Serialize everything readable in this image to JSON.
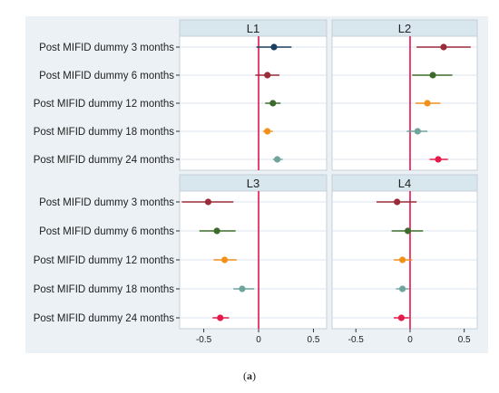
{
  "caption": {
    "prefix": "(",
    "label": "a",
    "suffix": ")"
  },
  "chart_data": {
    "type": "scatter",
    "layout": "2x2 facet forest plot with confidence intervals",
    "row_labels": [
      "Post MIFID dummy 3 months",
      "Post MIFID dummy 6 months",
      "Post MIFID dummy 12 months",
      "Post MIFID dummy 18 months",
      "Post MIFID dummy 24 months"
    ],
    "x_ticks": [
      "-0.5",
      "0",
      "0.5"
    ],
    "x_tick_values": [
      -0.5,
      0,
      0.5
    ],
    "xlim": [
      -0.72,
      0.62
    ],
    "reference_line": {
      "x": 0,
      "color": "#e8114f"
    },
    "grid": "horizontal",
    "marker_colors": [
      "#1a3f5f",
      "#9a2b39",
      "#3d6b2b",
      "#f3901c",
      "#6fa39c",
      "#e41b4a"
    ],
    "panels": [
      {
        "title": "L1",
        "points": [
          {
            "est": 0.14,
            "lo": -0.02,
            "hi": 0.3,
            "color": "#1a3f5f"
          },
          {
            "est": 0.08,
            "lo": -0.03,
            "hi": 0.19,
            "color": "#9a2b39"
          },
          {
            "est": 0.13,
            "lo": 0.06,
            "hi": 0.2,
            "color": "#3d6b2b"
          },
          {
            "est": 0.08,
            "lo": 0.04,
            "hi": 0.13,
            "color": "#f3901c"
          },
          {
            "est": 0.17,
            "lo": 0.13,
            "hi": 0.22,
            "color": "#6fa39c"
          }
        ]
      },
      {
        "title": "L2",
        "points": [
          {
            "est": 0.31,
            "lo": 0.06,
            "hi": 0.56,
            "color": "#9a2b39"
          },
          {
            "est": 0.21,
            "lo": 0.02,
            "hi": 0.39,
            "color": "#3d6b2b"
          },
          {
            "est": 0.16,
            "lo": 0.05,
            "hi": 0.28,
            "color": "#f3901c"
          },
          {
            "est": 0.07,
            "lo": -0.03,
            "hi": 0.16,
            "color": "#6fa39c"
          },
          {
            "est": 0.26,
            "lo": 0.18,
            "hi": 0.35,
            "color": "#e41b4a"
          }
        ]
      },
      {
        "title": "L3",
        "points": [
          {
            "est": -0.46,
            "lo": -0.7,
            "hi": -0.23,
            "color": "#9a2b39"
          },
          {
            "est": -0.38,
            "lo": -0.54,
            "hi": -0.21,
            "color": "#3d6b2b"
          },
          {
            "est": -0.31,
            "lo": -0.41,
            "hi": -0.2,
            "color": "#f3901c"
          },
          {
            "est": -0.15,
            "lo": -0.23,
            "hi": -0.04,
            "color": "#6fa39c"
          },
          {
            "est": -0.35,
            "lo": -0.42,
            "hi": -0.27,
            "color": "#e41b4a"
          }
        ]
      },
      {
        "title": "L4",
        "points": [
          {
            "est": -0.12,
            "lo": -0.31,
            "hi": 0.06,
            "color": "#9a2b39"
          },
          {
            "est": -0.02,
            "lo": -0.17,
            "hi": 0.12,
            "color": "#3d6b2b"
          },
          {
            "est": -0.07,
            "lo": -0.15,
            "hi": 0.02,
            "color": "#f3901c"
          },
          {
            "est": -0.07,
            "lo": -0.13,
            "hi": -0.01,
            "color": "#6fa39c"
          },
          {
            "est": -0.08,
            "lo": -0.15,
            "hi": -0.01,
            "color": "#e41b4a"
          }
        ]
      }
    ]
  },
  "style": {
    "strip_fill": "#d8e6ee",
    "panel_background": "#ffffff",
    "outer_background": "#ebf1f5",
    "grid_color": "#dce5ec"
  }
}
